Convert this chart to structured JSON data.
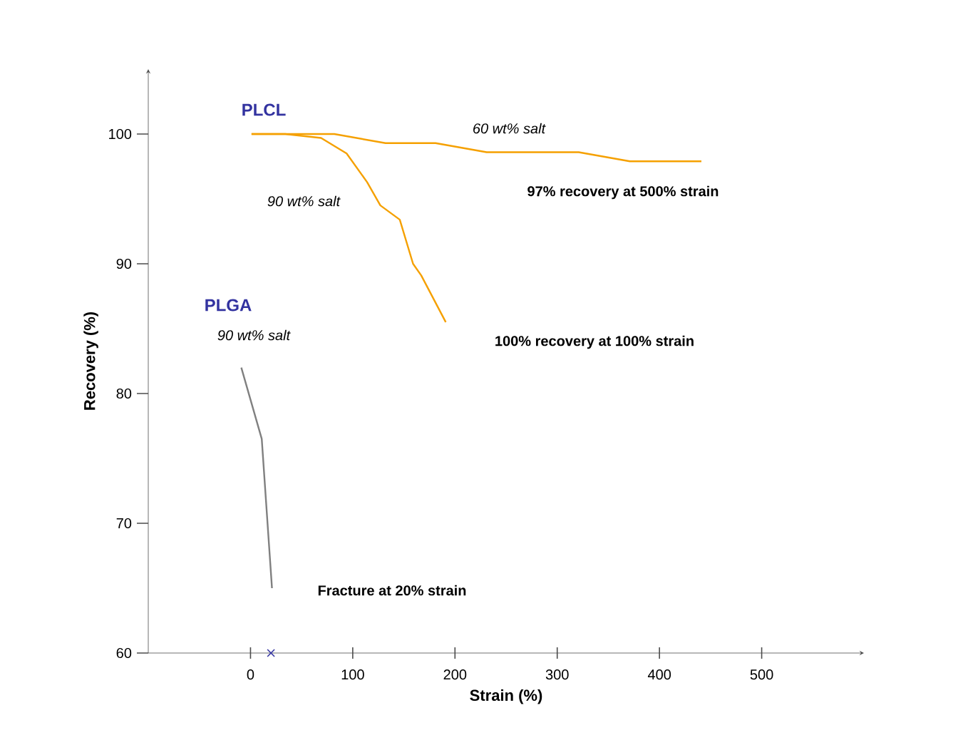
{
  "chart_data": {
    "type": "line",
    "xlabel": "Strain (%)",
    "ylabel": "Recovery (%)",
    "xlim": [
      -100,
      600
    ],
    "ylim": [
      60,
      105
    ],
    "xticks": [
      0,
      100,
      200,
      300,
      400,
      500
    ],
    "yticks": [
      60,
      70,
      80,
      90,
      100
    ],
    "grid": false,
    "marker": "none",
    "line_style": "solid",
    "series": [
      {
        "color": "#f5a000",
        "x": [
          1,
          82,
          132,
          181,
          231,
          321,
          371,
          441
        ],
        "values": [
          100,
          100,
          99.3,
          99.3,
          98.6,
          98.6,
          97.9,
          97.9
        ]
      },
      {
        "color": "#f5a000",
        "x": [
          1,
          34,
          69,
          94,
          114,
          127,
          146,
          159,
          167,
          191
        ],
        "values": [
          100,
          100,
          99.7,
          98.5,
          96.3,
          94.5,
          93.4,
          90.0,
          89.1,
          85.5
        ]
      },
      {
        "color": "#808080",
        "x": [
          -9,
          11,
          21
        ],
        "values": [
          82.0,
          76.5,
          65.0
        ]
      },
      {
        "type": "scatter",
        "marker": "cross",
        "color": "#3333a0",
        "x": [
          20
        ],
        "values": [
          60
        ]
      }
    ],
    "annotations": [
      "PLCL",
      "60 wt% salt",
      "90 wt% salt",
      "97% recovery at 500% strain",
      "100% recovery at 100% strain",
      "PLGA",
      "90 wt% salt",
      "Fracture at 20% strain"
    ]
  }
}
